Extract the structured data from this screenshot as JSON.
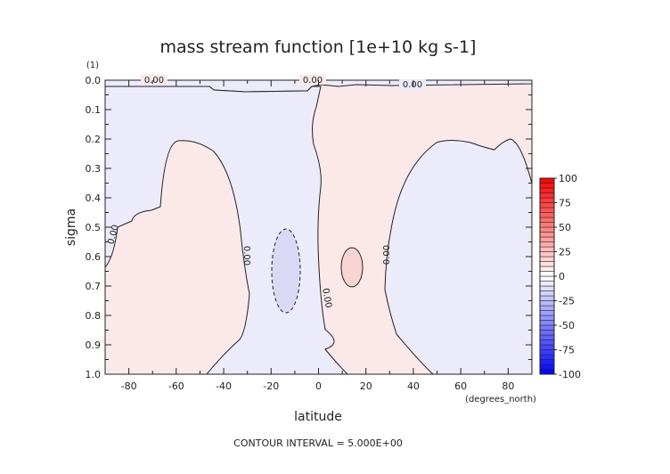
{
  "chart_data": {
    "type": "contour",
    "title": "mass stream function [1e+10 kg s-1]",
    "xlabel": "latitude",
    "xunits": "(degrees_north)",
    "ylabel": "sigma",
    "yunits": "(1)",
    "xlim": [
      -90,
      90
    ],
    "ylim": [
      0.0,
      1.0
    ],
    "y_inverted": true,
    "xticks": [
      -80,
      -60,
      -40,
      -20,
      0,
      20,
      40,
      60,
      80
    ],
    "yticks": [
      0.0,
      0.1,
      0.2,
      0.3,
      0.4,
      0.5,
      0.6,
      0.7,
      0.8,
      0.9,
      1.0
    ],
    "ytick_labels": [
      "0.0",
      "0.1",
      "0.2",
      "0.3",
      "0.4",
      "0.5",
      "0.6",
      "0.7",
      "0.8",
      "0.9",
      "1.0"
    ],
    "contour_interval": 5.0,
    "contour_labels": [
      "0.00",
      "0.00",
      "0.00",
      "0.00",
      "0.00",
      "0.00",
      "0.00"
    ],
    "colorbar": {
      "min": -100,
      "max": 100,
      "labels": [
        "100",
        "75",
        "50",
        "25",
        "0",
        "-25",
        "-50",
        "-75",
        "-100"
      ],
      "levels": [
        -100,
        -95,
        -90,
        -85,
        -80,
        -75,
        -70,
        -65,
        -60,
        -55,
        -50,
        -45,
        -40,
        -35,
        -30,
        -25,
        -20,
        -15,
        -10,
        -5,
        0,
        5,
        10,
        15,
        20,
        25,
        30,
        35,
        40,
        45,
        50,
        55,
        60,
        65,
        70,
        75,
        80,
        85,
        90,
        95,
        100
      ]
    },
    "regions": [
      {
        "sign": "positive",
        "level": "0 to 5",
        "color": "#fbe9e9"
      },
      {
        "sign": "negative",
        "level": "-5 to 0",
        "color": "#ebebfa"
      },
      {
        "sign": "positive",
        "level": "5 to 10",
        "color": "#f8d3d3"
      },
      {
        "sign": "negative",
        "level": "-10 to -5",
        "color": "#d9d9f6"
      }
    ],
    "footer": "CONTOUR INTERVAL = 5.000E+00"
  }
}
